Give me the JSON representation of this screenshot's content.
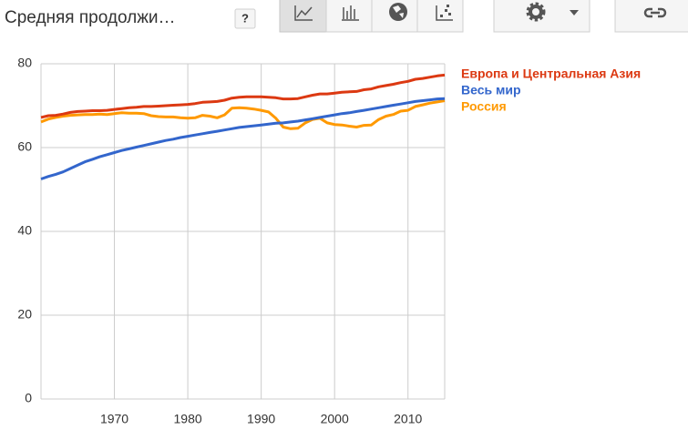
{
  "chart_data": {
    "type": "line",
    "title": "Средняя продолжи…",
    "x": [
      1960,
      1961,
      1962,
      1963,
      1964,
      1965,
      1966,
      1967,
      1968,
      1969,
      1970,
      1971,
      1972,
      1973,
      1974,
      1975,
      1976,
      1977,
      1978,
      1979,
      1980,
      1981,
      1982,
      1983,
      1984,
      1985,
      1986,
      1987,
      1988,
      1989,
      1990,
      1991,
      1992,
      1993,
      1994,
      1995,
      1996,
      1997,
      1998,
      1999,
      2000,
      2001,
      2002,
      2003,
      2004,
      2005,
      2006,
      2007,
      2008,
      2009,
      2010,
      2011,
      2012,
      2013,
      2014,
      2015
    ],
    "series": [
      {
        "name": "Европа и Центральная Азия",
        "color": "#dc3912",
        "values": [
          67.2,
          67.6,
          67.7,
          68.0,
          68.4,
          68.6,
          68.7,
          68.8,
          68.8,
          68.9,
          69.1,
          69.3,
          69.5,
          69.6,
          69.8,
          69.8,
          69.9,
          70.0,
          70.1,
          70.2,
          70.3,
          70.5,
          70.8,
          70.9,
          71.0,
          71.3,
          71.8,
          72.0,
          72.1,
          72.1,
          72.1,
          72.0,
          71.9,
          71.6,
          71.6,
          71.7,
          72.1,
          72.5,
          72.8,
          72.8,
          73.0,
          73.2,
          73.3,
          73.4,
          73.8,
          74.0,
          74.5,
          74.8,
          75.1,
          75.5,
          75.8,
          76.3,
          76.5,
          76.8,
          77.1,
          77.3
        ]
      },
      {
        "name": "Весь мир",
        "color": "#3366cc",
        "values": [
          52.5,
          53.1,
          53.6,
          54.2,
          55.0,
          55.8,
          56.6,
          57.2,
          57.8,
          58.3,
          58.8,
          59.3,
          59.7,
          60.1,
          60.5,
          60.9,
          61.3,
          61.7,
          62.0,
          62.4,
          62.7,
          63.0,
          63.3,
          63.6,
          63.9,
          64.2,
          64.5,
          64.8,
          65.0,
          65.2,
          65.4,
          65.6,
          65.8,
          65.9,
          66.1,
          66.3,
          66.6,
          66.9,
          67.2,
          67.5,
          67.8,
          68.1,
          68.3,
          68.6,
          68.9,
          69.2,
          69.5,
          69.8,
          70.1,
          70.4,
          70.7,
          71.0,
          71.2,
          71.4,
          71.6,
          71.7
        ]
      },
      {
        "name": "Россия",
        "color": "#ff9900",
        "values": [
          66.1,
          66.8,
          67.2,
          67.5,
          67.7,
          67.8,
          67.9,
          67.9,
          68.0,
          67.9,
          68.1,
          68.3,
          68.2,
          68.2,
          68.1,
          67.6,
          67.4,
          67.3,
          67.3,
          67.1,
          67.0,
          67.1,
          67.7,
          67.5,
          67.1,
          67.8,
          69.4,
          69.5,
          69.4,
          69.2,
          68.9,
          68.5,
          67.0,
          64.9,
          64.5,
          64.6,
          65.9,
          66.7,
          67.0,
          65.9,
          65.5,
          65.4,
          65.1,
          64.9,
          65.3,
          65.4,
          66.7,
          67.5,
          67.9,
          68.7,
          68.9,
          69.8,
          70.2,
          70.6,
          70.9,
          71.2
        ]
      }
    ],
    "xlim": [
      1960,
      2015
    ],
    "xticks": [
      1970,
      1980,
      1990,
      2000,
      2010
    ],
    "ylim": [
      0,
      80
    ],
    "yticks": [
      0,
      20,
      40,
      60,
      80
    ],
    "grid": true
  },
  "toolbar": {
    "help_button": "?"
  }
}
